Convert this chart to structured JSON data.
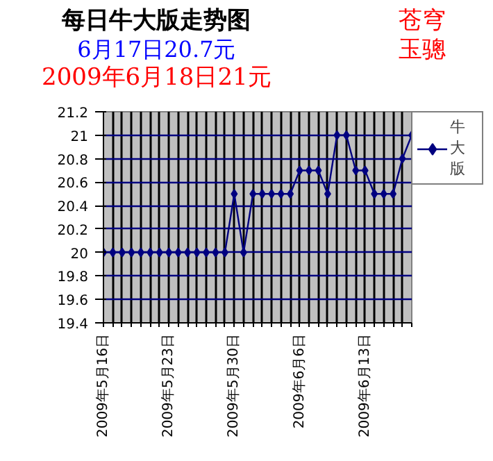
{
  "chart_data": {
    "type": "line",
    "title": "每日牛大版走势图",
    "subtitle": "6月17日20.7元",
    "annotations": [
      "2009年6月18日21元",
      "苍穹玉骢"
    ],
    "x": [
      "2009-05-16",
      "2009-05-17",
      "2009-05-18",
      "2009-05-19",
      "2009-05-20",
      "2009-05-21",
      "2009-05-22",
      "2009-05-23",
      "2009-05-24",
      "2009-05-25",
      "2009-05-26",
      "2009-05-27",
      "2009-05-28",
      "2009-05-29",
      "2009-05-30",
      "2009-05-31",
      "2009-06-01",
      "2009-06-02",
      "2009-06-03",
      "2009-06-04",
      "2009-06-05",
      "2009-06-06",
      "2009-06-07",
      "2009-06-08",
      "2009-06-09",
      "2009-06-10",
      "2009-06-11",
      "2009-06-12",
      "2009-06-13",
      "2009-06-14",
      "2009-06-15",
      "2009-06-16",
      "2009-06-17",
      "2009-06-18"
    ],
    "series": [
      {
        "name": "牛大版",
        "color": "#000080",
        "values": [
          20,
          20,
          20,
          20,
          20,
          20,
          20,
          20,
          20,
          20,
          20,
          20,
          20,
          20,
          20.5,
          20,
          20.5,
          20.5,
          20.5,
          20.5,
          20.5,
          20.7,
          20.7,
          20.7,
          20.5,
          21,
          21,
          20.7,
          20.7,
          20.5,
          20.5,
          20.5,
          20.8,
          21
        ]
      }
    ],
    "xlim": [
      "2009-05-16",
      "2009-06-18"
    ],
    "xticks": [
      {
        "value": "2009-05-16",
        "label": "2009年5月16日"
      },
      {
        "value": "2009-05-17",
        "label": null
      },
      {
        "value": "2009-05-18",
        "label": null
      },
      {
        "value": "2009-05-19",
        "label": null
      },
      {
        "value": "2009-05-20",
        "label": null
      },
      {
        "value": "2009-05-21",
        "label": null
      },
      {
        "value": "2009-05-22",
        "label": null
      },
      {
        "value": "2009-05-23",
        "label": "2009年5月23日"
      },
      {
        "value": "2009-05-24",
        "label": null
      },
      {
        "value": "2009-05-25",
        "label": null
      },
      {
        "value": "2009-05-26",
        "label": null
      },
      {
        "value": "2009-05-27",
        "label": null
      },
      {
        "value": "2009-05-28",
        "label": null
      },
      {
        "value": "2009-05-29",
        "label": null
      },
      {
        "value": "2009-05-30",
        "label": "2009年5月30日"
      },
      {
        "value": "2009-05-31",
        "label": null
      },
      {
        "value": "2009-06-01",
        "label": null
      },
      {
        "value": "2009-06-02",
        "label": null
      },
      {
        "value": "2009-06-03",
        "label": null
      },
      {
        "value": "2009-06-04",
        "label": null
      },
      {
        "value": "2009-06-05",
        "label": null
      },
      {
        "value": "2009-06-06",
        "label": "2009年6月6日"
      },
      {
        "value": "2009-06-07",
        "label": null
      },
      {
        "value": "2009-06-08",
        "label": null
      },
      {
        "value": "2009-06-09",
        "label": null
      },
      {
        "value": "2009-06-10",
        "label": null
      },
      {
        "value": "2009-06-11",
        "label": null
      },
      {
        "value": "2009-06-12",
        "label": null
      },
      {
        "value": "2009-06-13",
        "label": "2009年6月13日"
      },
      {
        "value": "2009-06-14",
        "label": null
      },
      {
        "value": "2009-06-15",
        "label": null
      },
      {
        "value": "2009-06-16",
        "label": null
      },
      {
        "value": "2009-06-17",
        "label": null
      },
      {
        "value": "2009-06-18",
        "label": null
      }
    ],
    "ylim": [
      19.4,
      21.2
    ],
    "yticks": [
      19.4,
      19.6,
      19.8,
      20,
      20.2,
      20.4,
      20.6,
      20.8,
      21,
      21.2
    ],
    "grid": true,
    "legend": "right",
    "marker": "diamond",
    "line_style": "solid"
  }
}
